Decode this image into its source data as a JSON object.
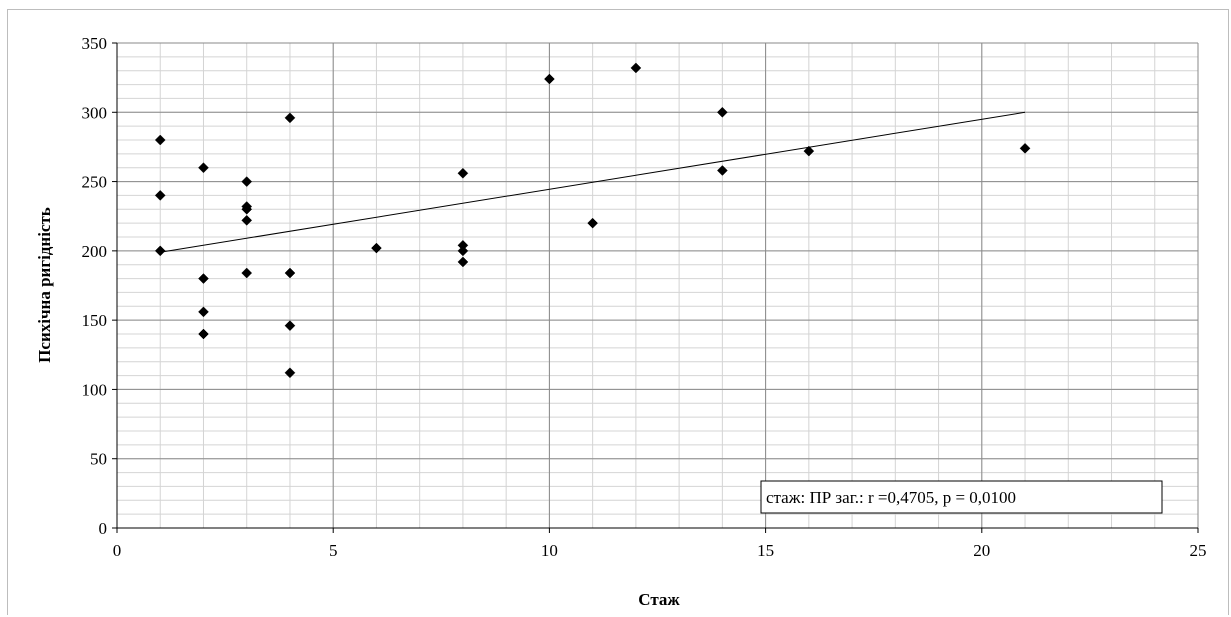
{
  "chart_data": {
    "type": "scatter",
    "title": "",
    "xlabel": "Стаж",
    "ylabel": "Психічна ригідність",
    "xlim": [
      0,
      25
    ],
    "ylim": [
      0,
      350
    ],
    "x_major_ticks": [
      0,
      5,
      10,
      15,
      20,
      25
    ],
    "y_major_ticks": [
      0,
      50,
      100,
      150,
      200,
      250,
      300,
      350
    ],
    "x_minor_step": 1,
    "y_minor_step": 10,
    "grid": true,
    "legend": "none",
    "marker": "diamond",
    "marker_color": "#000000",
    "points": [
      {
        "x": 1,
        "y": 280
      },
      {
        "x": 1,
        "y": 240
      },
      {
        "x": 1,
        "y": 200
      },
      {
        "x": 2,
        "y": 260
      },
      {
        "x": 2,
        "y": 180
      },
      {
        "x": 2,
        "y": 156
      },
      {
        "x": 2,
        "y": 140
      },
      {
        "x": 3,
        "y": 250
      },
      {
        "x": 3,
        "y": 232
      },
      {
        "x": 3,
        "y": 230
      },
      {
        "x": 3,
        "y": 222
      },
      {
        "x": 3,
        "y": 184
      },
      {
        "x": 4,
        "y": 296
      },
      {
        "x": 4,
        "y": 184
      },
      {
        "x": 4,
        "y": 146
      },
      {
        "x": 4,
        "y": 112
      },
      {
        "x": 6,
        "y": 202
      },
      {
        "x": 8,
        "y": 256
      },
      {
        "x": 8,
        "y": 204
      },
      {
        "x": 8,
        "y": 200
      },
      {
        "x": 8,
        "y": 192
      },
      {
        "x": 10,
        "y": 324
      },
      {
        "x": 11,
        "y": 220
      },
      {
        "x": 12,
        "y": 332
      },
      {
        "x": 14,
        "y": 300
      },
      {
        "x": 14,
        "y": 258
      },
      {
        "x": 16,
        "y": 272
      },
      {
        "x": 21,
        "y": 274
      }
    ],
    "trendline": {
      "type": "linear",
      "x_start": 1,
      "y_start": 199,
      "x_end": 21,
      "y_end": 300
    },
    "annotation": "стаж: ПР заг.: r =0,4705, p = 0,0100"
  }
}
